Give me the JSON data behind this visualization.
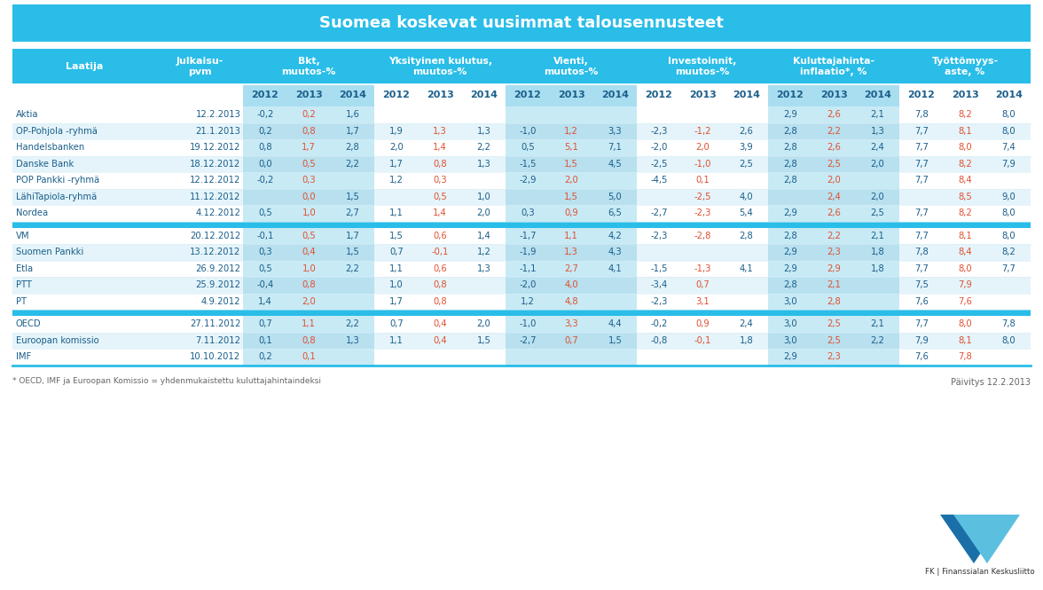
{
  "title": "Suomea koskevat uusimmat talousennusteet",
  "title_bg": "#29BDE8",
  "header_bg": "#29BDE8",
  "subheader_bg": "#A8DEF0",
  "row_bg_white": "#FFFFFF",
  "row_bg_light": "#E4F4FA",
  "col_shade": "#C8EAF5",
  "sep_color": "#29BDE8",
  "text_white": "#FFFFFF",
  "text_dark": "#1A5E8A",
  "text_red": "#E05030",
  "text_gray": "#666666",
  "groups": [
    {
      "rows": [
        [
          "Aktia",
          "12.2.2013",
          "-0,2",
          "0,2",
          "1,6",
          "",
          "",
          "",
          "",
          "",
          "",
          "",
          "",
          "",
          "2,9",
          "2,6",
          "2,1",
          "7,8",
          "8,2",
          "8,0"
        ],
        [
          "OP-Pohjola -ryhmä",
          "21.1.2013",
          "0,2",
          "0,8",
          "1,7",
          "1,9",
          "1,3",
          "1,3",
          "-1,0",
          "1,2",
          "3,3",
          "-2,3",
          "-1,2",
          "2,6",
          "2,8",
          "2,2",
          "1,3",
          "7,7",
          "8,1",
          "8,0"
        ],
        [
          "Handelsbanken",
          "19.12.2012",
          "0,8",
          "1,7",
          "2,8",
          "2,0",
          "1,4",
          "2,2",
          "0,5",
          "5,1",
          "7,1",
          "-2,0",
          "2,0",
          "3,9",
          "2,8",
          "2,6",
          "2,4",
          "7,7",
          "8,0",
          "7,4"
        ],
        [
          "Danske Bank",
          "18.12.2012",
          "0,0",
          "0,5",
          "2,2",
          "1,7",
          "0,8",
          "1,3",
          "-1,5",
          "1,5",
          "4,5",
          "-2,5",
          "-1,0",
          "2,5",
          "2,8",
          "2,5",
          "2,0",
          "7,7",
          "8,2",
          "7,9"
        ],
        [
          "POP Pankki -ryhmä",
          "12.12.2012",
          "-0,2",
          "0,3",
          "",
          "1,2",
          "0,3",
          "",
          "-2,9",
          "2,0",
          "",
          "-4,5",
          "0,1",
          "",
          "2,8",
          "2,0",
          "",
          "7,7",
          "8,4",
          ""
        ],
        [
          "LähiTapiola-ryhmä",
          "11.12.2012",
          "",
          "0,0",
          "1,5",
          "",
          "0,5",
          "1,0",
          "",
          "1,5",
          "5,0",
          "",
          "-2,5",
          "4,0",
          "",
          "2,4",
          "2,0",
          "",
          "8,5",
          "9,0"
        ],
        [
          "Nordea",
          "4.12.2012",
          "0,5",
          "1,0",
          "2,7",
          "1,1",
          "1,4",
          "2,0",
          "0,3",
          "0,9",
          "6,5",
          "-2,7",
          "-2,3",
          "5,4",
          "2,9",
          "2,6",
          "2,5",
          "7,7",
          "8,2",
          "8,0"
        ]
      ]
    },
    {
      "rows": [
        [
          "VM",
          "20.12.2012",
          "-0,1",
          "0,5",
          "1,7",
          "1,5",
          "0,6",
          "1,4",
          "-1,7",
          "1,1",
          "4,2",
          "-2,3",
          "-2,8",
          "2,8",
          "2,8",
          "2,2",
          "2,1",
          "7,7",
          "8,1",
          "8,0"
        ],
        [
          "Suomen Pankki",
          "13.12.2012",
          "0,3",
          "0,4",
          "1,5",
          "0,7",
          "-0,1",
          "1,2",
          "-1,9",
          "1,3",
          "4,3",
          "",
          "",
          "",
          "2,9",
          "2,3",
          "1,8",
          "7,8",
          "8,4",
          "8,2"
        ],
        [
          "Etla",
          "26.9.2012",
          "0,5",
          "1,0",
          "2,2",
          "1,1",
          "0,6",
          "1,3",
          "-1,1",
          "2,7",
          "4,1",
          "-1,5",
          "-1,3",
          "4,1",
          "2,9",
          "2,9",
          "1,8",
          "7,7",
          "8,0",
          "7,7"
        ],
        [
          "PTT",
          "25.9.2012",
          "-0,4",
          "0,8",
          "",
          "1,0",
          "0,8",
          "",
          "-2,0",
          "4,0",
          "",
          "-3,4",
          "0,7",
          "",
          "2,8",
          "2,1",
          "",
          "7,5",
          "7,9",
          ""
        ],
        [
          "PT",
          "4.9.2012",
          "1,4",
          "2,0",
          "",
          "1,7",
          "0,8",
          "",
          "1,2",
          "4,8",
          "",
          "-2,3",
          "3,1",
          "",
          "3,0",
          "2,8",
          "",
          "7,6",
          "7,6",
          ""
        ]
      ]
    },
    {
      "rows": [
        [
          "OECD",
          "27.11.2012",
          "0,7",
          "1,1",
          "2,2",
          "0,7",
          "0,4",
          "2,0",
          "-1,0",
          "3,3",
          "4,4",
          "-0,2",
          "0,9",
          "2,4",
          "3,0",
          "2,5",
          "2,1",
          "7,7",
          "8,0",
          "7,8"
        ],
        [
          "Euroopan komissio",
          "7.11.2012",
          "0,1",
          "0,8",
          "1,3",
          "1,1",
          "0,4",
          "1,5",
          "-2,7",
          "0,7",
          "1,5",
          "-0,8",
          "-0,1",
          "1,8",
          "3,0",
          "2,5",
          "2,2",
          "7,9",
          "8,1",
          "8,0"
        ],
        [
          "IMF",
          "10.10.2012",
          "0,2",
          "0,1",
          "",
          "",
          "",
          "",
          "",
          "",
          "",
          "",
          "",
          "",
          "2,9",
          "2,3",
          "",
          "7,6",
          "7,8",
          ""
        ]
      ]
    }
  ],
  "col_group_labels": [
    "Bkt,\nmuutos-%",
    "Yksityinen kulutus,\nmuutos-%",
    "Vienti,\nmuutos-%",
    "Investoinnit,\nmuutos-%",
    "Kuluttajahinta-\ninflaatio*, %",
    "Työttömyys-\naste, %"
  ],
  "footnote": "* OECD, IMF ja Euroopan Komissio = yhdenmukaistettu kuluttajahintaindeksi",
  "update_text": "Päivitys 12.2.2013"
}
